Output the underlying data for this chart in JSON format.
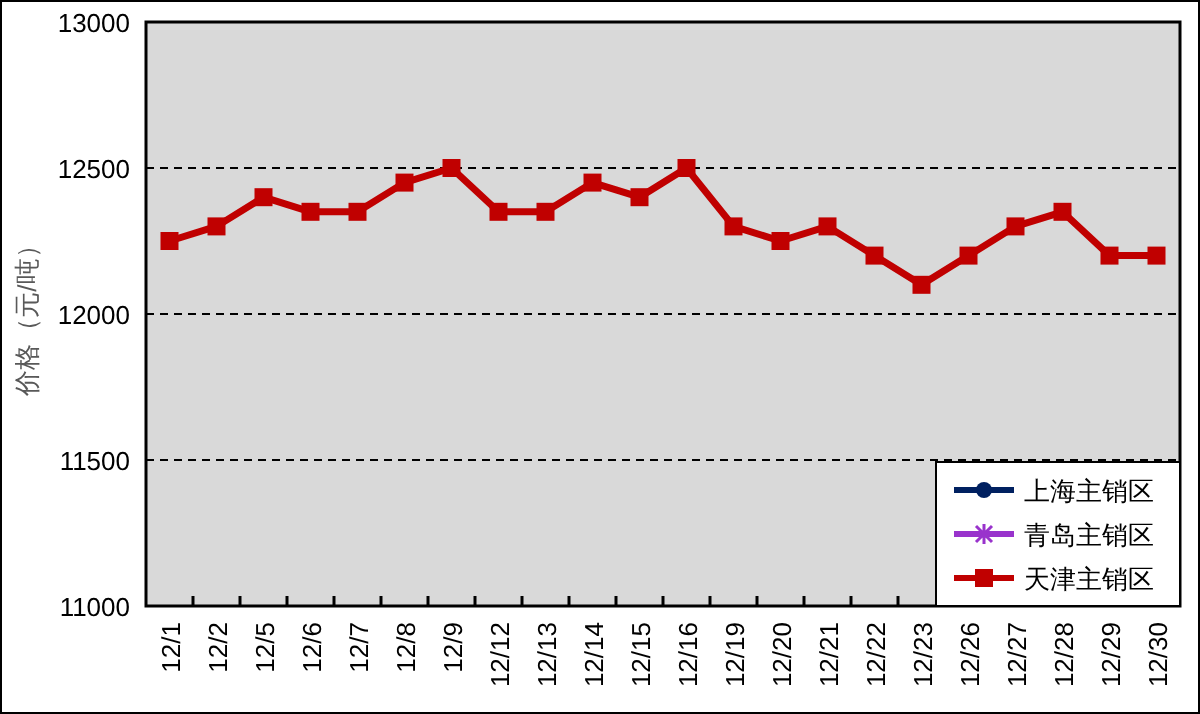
{
  "chart_data": {
    "type": "line",
    "ylabel": "价格（元/吨）",
    "categories": [
      "12/1",
      "12/2",
      "12/5",
      "12/6",
      "12/7",
      "12/8",
      "12/9",
      "12/12",
      "12/13",
      "12/14",
      "12/15",
      "12/16",
      "12/19",
      "12/20",
      "12/21",
      "12/22",
      "12/23",
      "12/26",
      "12/27",
      "12/28",
      "12/29",
      "12/30"
    ],
    "series": [
      {
        "name": "上海主销区",
        "color": "#002060",
        "marker": "circle",
        "values": [
          null,
          null,
          null,
          null,
          null,
          null,
          null,
          null,
          null,
          null,
          null,
          null,
          null,
          null,
          null,
          null,
          null,
          null,
          null,
          null,
          null,
          null
        ]
      },
      {
        "name": "青岛主销区",
        "color": "#9933cc",
        "marker": "cross",
        "values": [
          null,
          null,
          null,
          null,
          null,
          null,
          null,
          null,
          null,
          null,
          null,
          null,
          null,
          null,
          null,
          null,
          null,
          null,
          null,
          null,
          null,
          null
        ]
      },
      {
        "name": "天津主销区",
        "color": "#c00000",
        "marker": "square",
        "values": [
          12250,
          12300,
          12400,
          12350,
          12350,
          12450,
          12500,
          12350,
          12350,
          12450,
          12400,
          12500,
          12300,
          12250,
          12300,
          12200,
          12100,
          12200,
          12300,
          12350,
          12200,
          12200
        ]
      }
    ],
    "ylim": [
      11000,
      13000
    ],
    "yticks": [
      11000,
      11500,
      12000,
      12500,
      13000
    ],
    "grid": "y",
    "legend": "bottom right",
    "line_style": "solid"
  }
}
